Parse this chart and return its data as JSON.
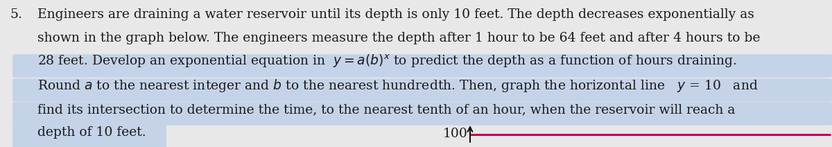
{
  "background_color": "#e8e8e8",
  "text_color": "#1a1a1a",
  "highlight_color": "#c5d3e8",
  "line_color": "#c0005a",
  "tick_color": "#111111",
  "fig_width": 12.0,
  "fig_height": 2.12,
  "number": "5.",
  "line1": "Engineers are draining a water reservoir until its depth is only 10 feet. The depth decreases exponentially as",
  "line2": "shown in the graph below. The engineers measure the depth after 1 hour to be 64 feet and after 4 hours to be",
  "line3_pre": "28 feet. Develop an exponential equation in  y = a(b)",
  "line3_super": "x",
  "line3_post": " to predict the depth as a function of hours draining.",
  "line4": "Round a to the nearest integer and b to the nearest hundredth. Then, graph the horizontal line  y = 10  and",
  "line5": "find its intersection to determine the time, to the nearest tenth of an hour, when the reservoir will reach a",
  "line6": "depth of 10 feet.",
  "axis_label": "100",
  "font_size": 13.5,
  "number_indent": 0.012,
  "text_indent": 0.045
}
